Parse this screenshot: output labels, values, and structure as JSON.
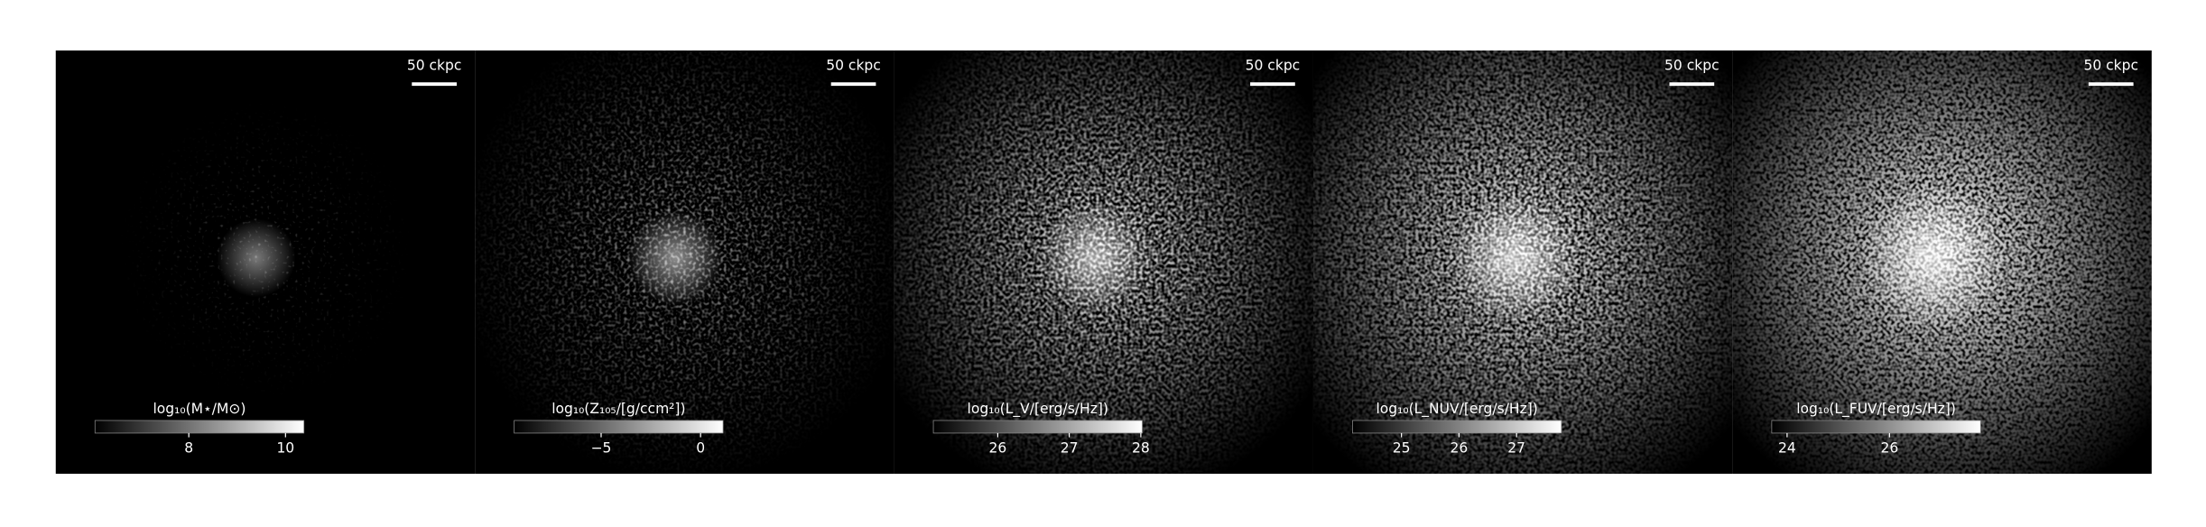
{
  "panels": [
    {
      "scale_bar_label": "50 ckpc",
      "colorbar": {
        "label": "log₁₀(M⋆/M⊙)",
        "clim": [
          6.06,
          10.38
        ],
        "ticks": [
          8,
          10
        ]
      }
    },
    {
      "scale_bar_label": "50 ckpc",
      "colorbar": {
        "label": "log₁₀(Z₁₀₅/[g/ccm²])",
        "clim": [
          -9.37,
          1.13
        ],
        "ticks": [
          {
            "value": -5,
            "label": "−5"
          },
          0
        ]
      }
    },
    {
      "scale_bar_label": "50 ckpc",
      "colorbar": {
        "label": "log₁₀(L_V/[erg/s/Hz])",
        "clim": [
          25.1,
          28.02
        ],
        "ticks": [
          26,
          27,
          28
        ]
      }
    },
    {
      "scale_bar_label": "50 ckpc",
      "colorbar": {
        "label": "log₁₀(L_NUV/[erg/s/Hz])",
        "clim": [
          24.15,
          27.78
        ],
        "ticks": [
          25,
          26,
          27
        ]
      }
    },
    {
      "scale_bar_label": "50 ckpc",
      "colorbar": {
        "label": "log₁₀(L_FUV/[erg/s/Hz])",
        "clim": [
          23.7,
          27.78
        ],
        "ticks": [
          24,
          26
        ]
      }
    }
  ]
}
